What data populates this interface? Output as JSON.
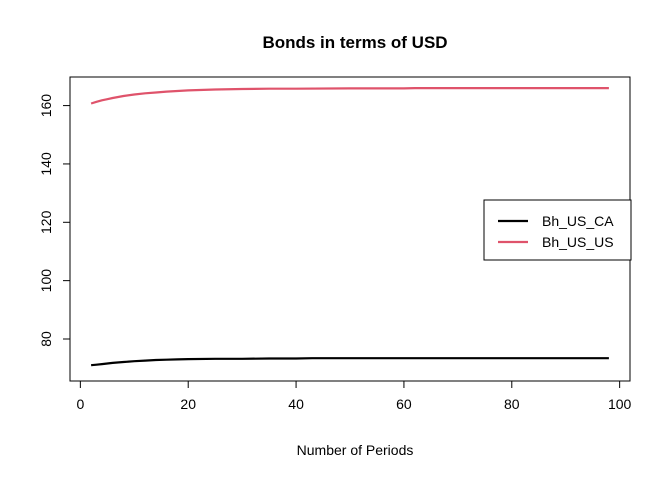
{
  "chart_data": {
    "type": "line",
    "title": "Bonds in terms of USD",
    "xlabel": "Number of Periods",
    "ylabel": "",
    "xlim": [
      -1.92,
      101.92
    ],
    "ylim": [
      65.6,
      169.8
    ],
    "xticks": [
      0,
      20,
      40,
      60,
      80,
      100
    ],
    "yticks": [
      80,
      100,
      120,
      140,
      160
    ],
    "legend_position": "right",
    "series": [
      {
        "name": "Bh_US_CA",
        "color": "#000000",
        "x": [
          2,
          3,
          4,
          5,
          6,
          8,
          10,
          12,
          14,
          16,
          18,
          20,
          25,
          30,
          35,
          40,
          43,
          50,
          60,
          70,
          80,
          90,
          98
        ],
        "values": [
          71.0,
          71.2,
          71.4,
          71.6,
          71.8,
          72.1,
          72.4,
          72.6,
          72.8,
          72.9,
          73.0,
          73.1,
          73.2,
          73.2,
          73.3,
          73.3,
          73.4,
          73.4,
          73.4,
          73.4,
          73.4,
          73.4,
          73.4
        ]
      },
      {
        "name": "Bh_US_US",
        "color": "#DF536B",
        "x": [
          2,
          3,
          4,
          5,
          6,
          8,
          10,
          12,
          14,
          16,
          18,
          20,
          25,
          30,
          35,
          40,
          50,
          60,
          62,
          70,
          80,
          90,
          98
        ],
        "values": [
          160.7,
          161.3,
          161.8,
          162.2,
          162.6,
          163.3,
          163.8,
          164.2,
          164.5,
          164.8,
          165.0,
          165.2,
          165.5,
          165.7,
          165.8,
          165.8,
          165.9,
          165.9,
          166.0,
          166.0,
          166.0,
          166.0,
          166.0
        ]
      }
    ]
  }
}
